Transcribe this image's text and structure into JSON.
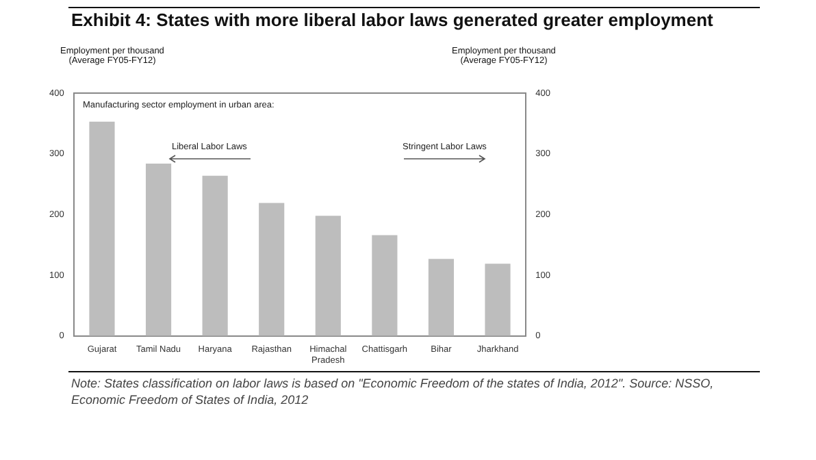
{
  "chart_data": {
    "type": "bar",
    "title": "Exhibit 4: States with more liberal labor laws generated greater employment",
    "ylabel": "Employment per thousand (Average FY05-FY12)",
    "y2label": "Employment per thousand (Average FY05-FY12)",
    "categories": [
      "Gujarat",
      "Tamil Nadu",
      "Haryana",
      "Rajasthan",
      "Himachal Pradesh",
      "Chattisgarh",
      "Bihar",
      "Jharkhand"
    ],
    "values": [
      353,
      284,
      264,
      219,
      198,
      166,
      127,
      119
    ],
    "color": "#bdbdbd",
    "ylim": [
      0,
      400
    ],
    "yticks": [
      0,
      100,
      200,
      300,
      400
    ],
    "y2lim": [
      0,
      400
    ],
    "y2ticks": [
      0,
      100,
      200,
      300,
      400
    ],
    "grid": false,
    "legend": false,
    "annotations": [
      "Manufacturing sector employment in urban area:",
      "Liberal Labor Laws",
      "Stringent Labor Laws",
      "Note: States classification on labor laws is based on \"Economic Freedom of the states of India, 2012\". Source: NSSO, Economic Freedom of States of India, 2012"
    ]
  }
}
